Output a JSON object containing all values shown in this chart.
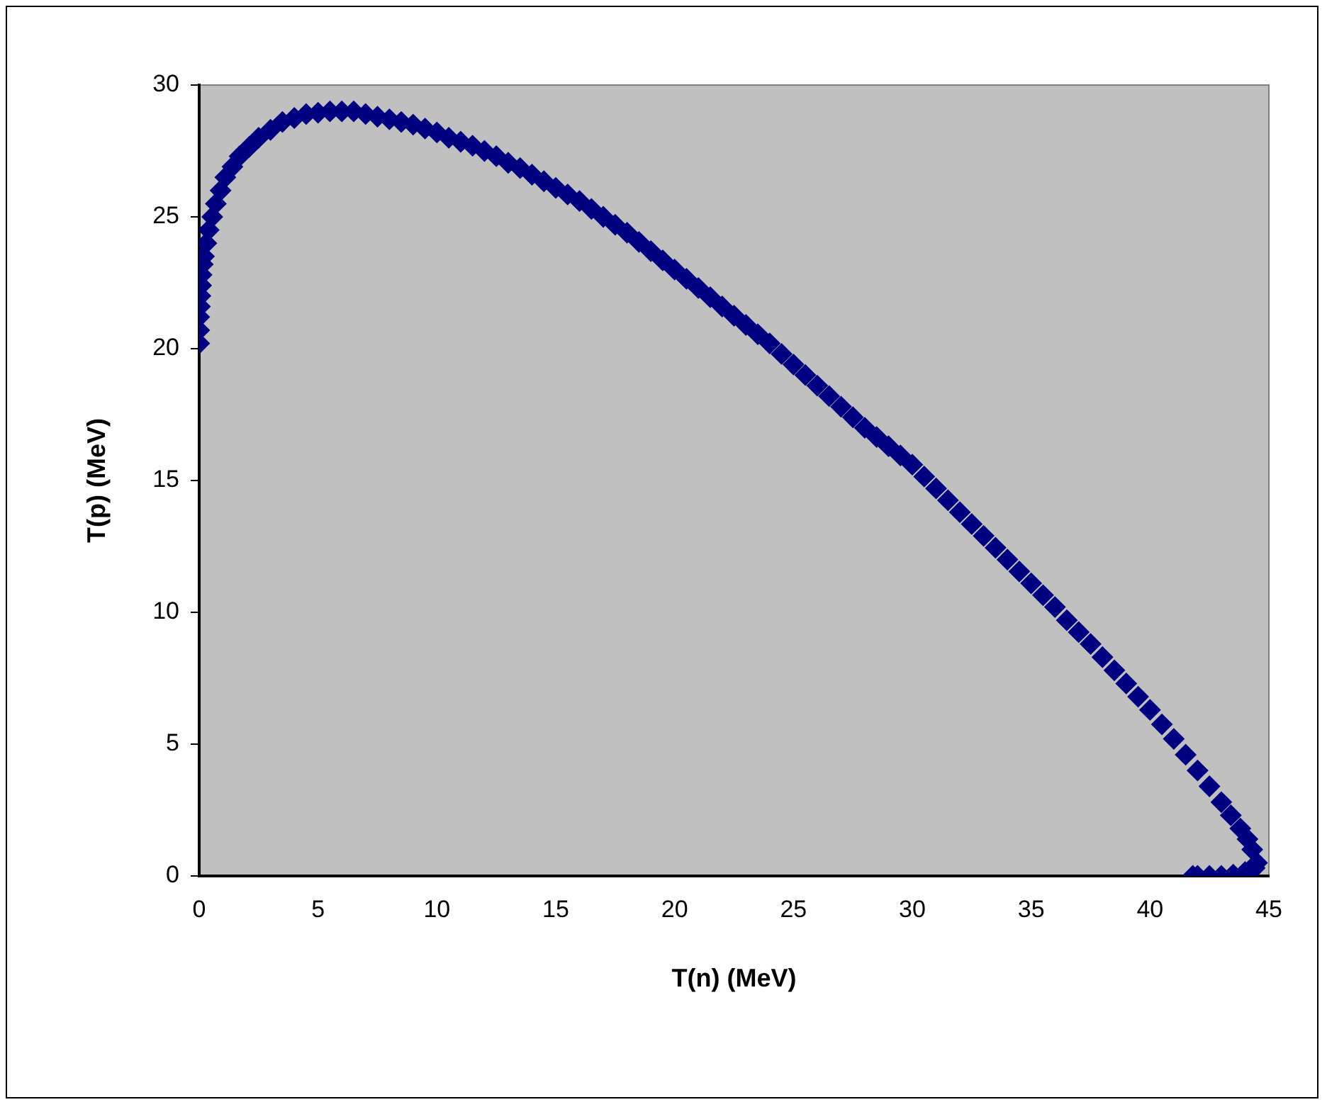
{
  "chart_data": {
    "type": "scatter",
    "xlabel": "T(n) (MeV)",
    "ylabel": "T(p) (MeV)",
    "xlim": [
      0,
      45
    ],
    "ylim": [
      0,
      30
    ],
    "xticks": [
      0,
      5,
      10,
      15,
      20,
      25,
      30,
      35,
      40,
      45
    ],
    "yticks": [
      0,
      5,
      10,
      15,
      20,
      25,
      30
    ],
    "grid": false,
    "legend": false,
    "marker": "diamond",
    "series": [
      {
        "color": "#000080",
        "x": [
          0,
          0,
          0,
          0.03,
          0.05,
          0.08,
          0.1,
          0.15,
          0.2,
          0.3,
          0.4,
          0.55,
          0.7,
          0.9,
          1.1,
          1.4,
          1.7,
          2.1,
          2.5,
          3,
          3.5,
          4,
          4.5,
          5,
          5.5,
          6,
          6.5,
          7,
          7.5,
          8,
          8.5,
          9,
          9.5,
          10,
          10.5,
          11,
          11.5,
          12,
          12.5,
          13,
          13.5,
          14,
          14.5,
          15,
          15.5,
          16,
          16.5,
          17,
          17.5,
          18,
          18.5,
          19,
          19.5,
          20,
          20.5,
          21,
          21.5,
          22,
          22.5,
          23,
          23.5,
          24,
          24.5,
          25,
          25.5,
          26,
          26.5,
          27,
          27.5,
          28,
          28.5,
          29,
          29.5,
          30,
          30.5,
          31,
          31.5,
          32,
          32.5,
          33,
          33.5,
          34,
          34.5,
          35,
          35.5,
          36,
          36.5,
          37,
          37.5,
          38,
          38.5,
          39,
          39.5,
          40,
          40.5,
          41,
          41.5,
          42,
          42.5,
          43,
          43.4,
          43.8,
          44.1,
          44.3,
          44.5,
          44.4,
          44,
          43.5,
          43,
          42.5,
          42,
          41.8
        ],
        "values": [
          20.2,
          20.7,
          21.2,
          21.6,
          22,
          22.4,
          22.8,
          23.2,
          23.5,
          24,
          24.5,
          25,
          25.5,
          26,
          26.5,
          26.9,
          27.3,
          27.65,
          28,
          28.3,
          28.6,
          28.75,
          28.9,
          28.95,
          29,
          29,
          29,
          28.9,
          28.8,
          28.7,
          28.6,
          28.5,
          28.35,
          28.2,
          28,
          27.85,
          27.7,
          27.5,
          27.3,
          27.05,
          26.85,
          26.6,
          26.35,
          26.1,
          25.85,
          25.6,
          25.3,
          25,
          24.7,
          24.4,
          24.05,
          23.7,
          23.35,
          23,
          22.65,
          22.3,
          21.95,
          21.6,
          21.25,
          20.9,
          20.55,
          20.2,
          19.8,
          19.4,
          19,
          18.6,
          18.2,
          17.8,
          17.4,
          17,
          16.65,
          16.3,
          15.95,
          15.6,
          15.15,
          14.7,
          14.25,
          13.8,
          13.35,
          12.9,
          12.45,
          12,
          11.55,
          11.1,
          10.65,
          10.2,
          9.7,
          9.25,
          8.8,
          8.3,
          7.8,
          7.3,
          6.8,
          6.3,
          5.75,
          5.2,
          4.6,
          4,
          3.4,
          2.8,
          2.3,
          1.8,
          1.4,
          1,
          0.5,
          0.3,
          0.15,
          0.05,
          0,
          0,
          0,
          0
        ]
      }
    ]
  }
}
